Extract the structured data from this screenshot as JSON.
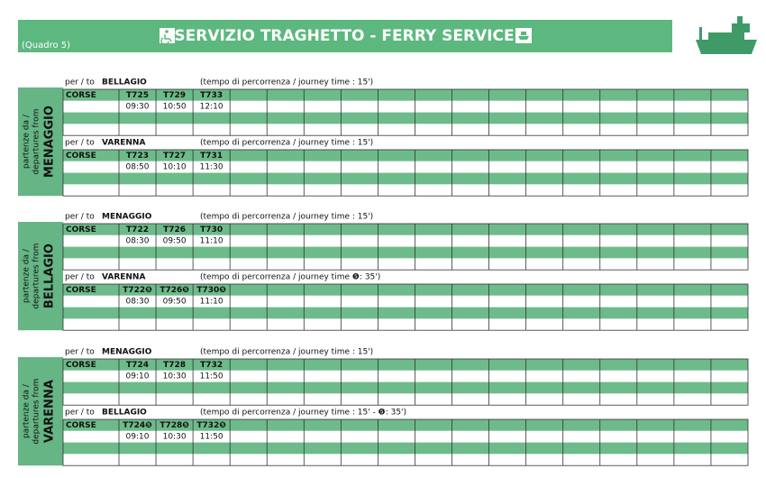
{
  "header": {
    "label": "(Quadro 5)",
    "title": "SERVIZIO TRAGHETTO - FERRY SERVICE"
  },
  "sections": [
    {
      "departure_label": [
        "partenze da /",
        "departures from"
      ],
      "port": "MENAGGIO",
      "routes": [
        {
          "to_label": "per / to",
          "destination": "BELLAGIO",
          "journey": "(tempo di percorrenza / journey time : 15')",
          "row_label": "CORSE",
          "trips": [
            "T725",
            "T729",
            "T733"
          ],
          "times": [
            "09:30",
            "10:50",
            "12:10"
          ]
        },
        {
          "to_label": "per / to",
          "destination": "VARENNA",
          "journey": "(tempo di percorrenza / journey time : 15')",
          "row_label": "CORSE",
          "trips": [
            "T723",
            "T727",
            "T731"
          ],
          "times": [
            "08:50",
            "10:10",
            "11:30"
          ]
        }
      ]
    },
    {
      "departure_label": [
        "partenze da /",
        "departures from"
      ],
      "port": "BELLAGIO",
      "routes": [
        {
          "to_label": "per / to",
          "destination": "MENAGGIO",
          "journey": "(tempo di percorrenza / journey time : 15')",
          "row_label": "CORSE",
          "trips": [
            "T722",
            "T726",
            "T730"
          ],
          "times": [
            "08:30",
            "09:50",
            "11:10"
          ]
        },
        {
          "to_label": "per / to",
          "destination": "VARENNA",
          "journey": "(tempo di percorrenza / journey time ❺: 35')",
          "row_label": "CORSE",
          "trips": [
            "T722❺",
            "T726❺",
            "T730❺"
          ],
          "times": [
            "08:30",
            "09:50",
            "11:10"
          ]
        }
      ]
    },
    {
      "departure_label": [
        "partenze da /",
        "departures from"
      ],
      "port": "VARENNA",
      "routes": [
        {
          "to_label": "per / to",
          "destination": "MENAGGIO",
          "journey": "(tempo di percorrenza / journey time : 15')",
          "row_label": "CORSE",
          "trips": [
            "T724",
            "T728",
            "T732"
          ],
          "times": [
            "09:10",
            "10:30",
            "11:50"
          ]
        },
        {
          "to_label": "per / to",
          "destination": "BELLAGIO",
          "journey": "(tempo di percorrenza / journey time : 15' - ❺: 35')",
          "row_label": "CORSE",
          "trips": [
            "T724❺",
            "T728❺",
            "T732❺"
          ],
          "times": [
            "09:10",
            "10:30",
            "11:50"
          ]
        }
      ]
    }
  ]
}
